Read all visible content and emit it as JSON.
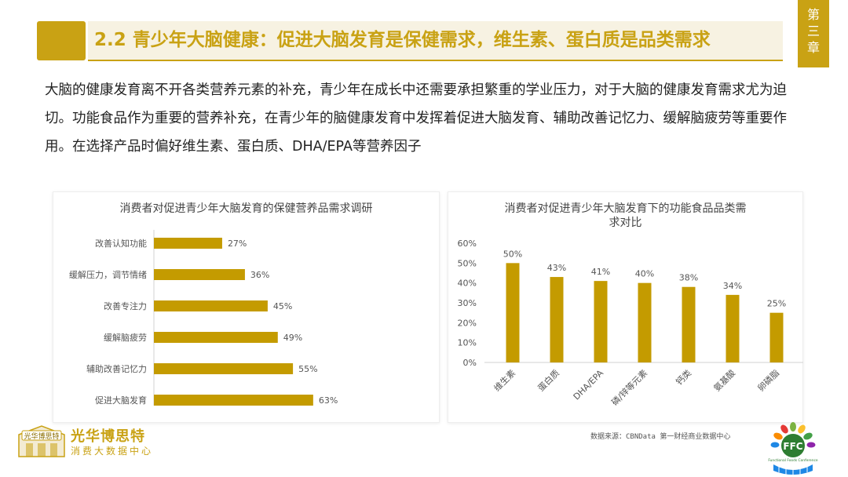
{
  "header": {
    "title": "2.2 青少年大脑健康：促进大脑发育是保健需求，维生素、蛋白质是品类需求",
    "chapter": "第\n三\n章"
  },
  "intro": "大脑的健康发育离不开各类营养元素的补充，青少年在成长中还需要承担繁重的学业压力，对于大脑的健康发育需求尤为迫切。功能食品作为重要的营养补充，在青少年的脑健康发育中发挥着促进大脑发育、辅助改善记忆力、缓解脑疲劳等重要作用。在选择产品时偏好维生素、蛋白质、DHA/EPA等营养因子",
  "colors": {
    "accent": "#C9A214",
    "bar": "#C49B00"
  },
  "chart_data": [
    {
      "type": "bar",
      "orientation": "horizontal",
      "title": "消费者对促进青少年大脑发育的保健营养品需求调研",
      "categories": [
        "改善认知功能",
        "缓解压力，调节情绪",
        "改善专注力",
        "缓解脑疲劳",
        "辅助改善记忆力",
        "促进大脑发育"
      ],
      "values": [
        27,
        36,
        45,
        49,
        55,
        63
      ],
      "labels": [
        "27%",
        "36%",
        "45%",
        "49%",
        "55%",
        "63%"
      ],
      "xlim": [
        0,
        100
      ]
    },
    {
      "type": "bar",
      "orientation": "vertical",
      "title_lines": [
        "消费者对促进青少年大脑发育下的功能食品品类需",
        "求对比"
      ],
      "categories": [
        "维生素",
        "蛋白质",
        "DHA/EPA",
        "磷/锌等元素",
        "钙类",
        "氨基酸",
        "卵磷脂"
      ],
      "values": [
        50,
        43,
        41,
        40,
        38,
        34,
        25
      ],
      "labels": [
        "50%",
        "43%",
        "41%",
        "40%",
        "38%",
        "34%",
        "25%"
      ],
      "yticks": [
        "0%",
        "10%",
        "20%",
        "30%",
        "40%",
        "50%",
        "60%"
      ],
      "ylim": [
        0,
        60
      ]
    }
  ],
  "footer": {
    "brand_name": "光华博思特",
    "brand_sub": "消费大数据中心",
    "source": "数据来源：CBNData 第一财经商业数据中心",
    "logo_left_text": "光华博思特",
    "logo_right_text": "FFC",
    "logo_right_sub": "Functional Foods Conference"
  }
}
